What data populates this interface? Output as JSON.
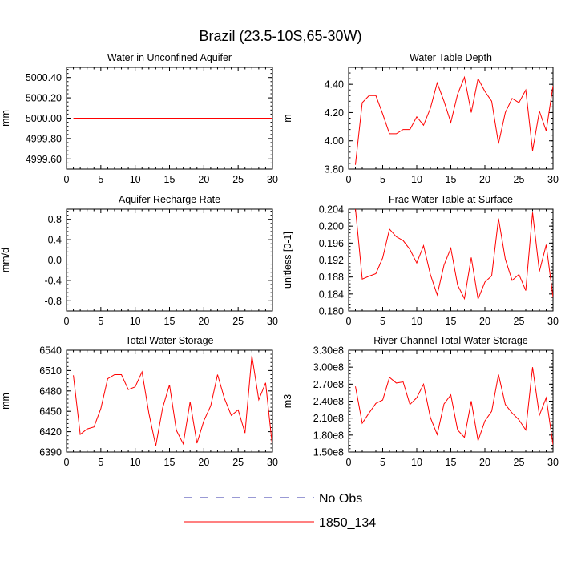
{
  "title": "Brazil (23.5-10S,65-30W)",
  "legend": {
    "position": "bottom-center",
    "entries": [
      {
        "label": "No Obs",
        "color": "#3333aa",
        "style": "dashed"
      },
      {
        "label": "1850_134",
        "color": "#ff0000",
        "style": "solid"
      }
    ]
  },
  "chart_data": [
    {
      "type": "line",
      "title": "Water in Unconfined Aquifer",
      "ylabel": "mm",
      "xlim": [
        0,
        30
      ],
      "ylim": [
        4999.5,
        5000.5
      ],
      "xticks": [
        0,
        5,
        10,
        15,
        20,
        25,
        30
      ],
      "yticks": [
        4999.6,
        4999.8,
        5000.0,
        5000.2,
        5000.4
      ],
      "ytick_labels": [
        "4999.60",
        "4999.80",
        "5000.00",
        "5000.20",
        "5000.40"
      ],
      "series": [
        {
          "name": "1850_134",
          "color": "#ff0000",
          "x": [
            1,
            2,
            3,
            4,
            5,
            6,
            7,
            8,
            9,
            10,
            11,
            12,
            13,
            14,
            15,
            16,
            17,
            18,
            19,
            20,
            21,
            22,
            23,
            24,
            25,
            26,
            27,
            28,
            29,
            30
          ],
          "y": [
            5000,
            5000,
            5000,
            5000,
            5000,
            5000,
            5000,
            5000,
            5000,
            5000,
            5000,
            5000,
            5000,
            5000,
            5000,
            5000,
            5000,
            5000,
            5000,
            5000,
            5000,
            5000,
            5000,
            5000,
            5000,
            5000,
            5000,
            5000,
            5000,
            5000
          ]
        }
      ]
    },
    {
      "type": "line",
      "title": "Water Table Depth",
      "ylabel": "m",
      "xlim": [
        0,
        30
      ],
      "ylim": [
        3.8,
        4.52
      ],
      "xticks": [
        0,
        5,
        10,
        15,
        20,
        25,
        30
      ],
      "yticks": [
        3.8,
        4.0,
        4.2,
        4.4
      ],
      "ytick_labels": [
        "3.80",
        "4.00",
        "4.20",
        "4.40"
      ],
      "series": [
        {
          "name": "1850_134",
          "color": "#ff0000",
          "x": [
            1,
            2,
            3,
            4,
            5,
            6,
            7,
            8,
            9,
            10,
            11,
            12,
            13,
            14,
            15,
            16,
            17,
            18,
            19,
            20,
            21,
            22,
            23,
            24,
            25,
            26,
            27,
            28,
            29,
            30
          ],
          "y": [
            3.83,
            4.27,
            4.32,
            4.32,
            4.19,
            4.05,
            4.05,
            4.08,
            4.08,
            4.17,
            4.11,
            4.23,
            4.41,
            4.28,
            4.13,
            4.33,
            4.45,
            4.2,
            4.44,
            4.35,
            4.28,
            3.98,
            4.2,
            4.3,
            4.27,
            4.36,
            3.93,
            4.21,
            4.07,
            4.39
          ]
        }
      ]
    },
    {
      "type": "line",
      "title": "Aquifer Recharge Rate",
      "ylabel": "mm/d",
      "xlim": [
        0,
        30
      ],
      "ylim": [
        -1.0,
        1.0
      ],
      "xticks": [
        0,
        5,
        10,
        15,
        20,
        25,
        30
      ],
      "yticks": [
        -0.8,
        -0.4,
        0.0,
        0.4,
        0.8
      ],
      "ytick_labels": [
        "-0.8",
        "-0.4",
        "0.0",
        "0.4",
        "0.8"
      ],
      "series": [
        {
          "name": "1850_134",
          "color": "#ff0000",
          "x": [
            1,
            2,
            3,
            4,
            5,
            6,
            7,
            8,
            9,
            10,
            11,
            12,
            13,
            14,
            15,
            16,
            17,
            18,
            19,
            20,
            21,
            22,
            23,
            24,
            25,
            26,
            27,
            28,
            29,
            30
          ],
          "y": [
            0,
            0,
            0,
            0,
            0,
            0,
            0,
            0,
            0,
            0,
            0,
            0,
            0,
            0,
            0,
            0,
            0,
            0,
            0,
            0,
            0,
            0,
            0,
            0,
            0,
            0,
            0,
            0,
            0,
            0
          ]
        }
      ]
    },
    {
      "type": "line",
      "title": "Frac Water Table at Surface",
      "ylabel": "unitless [0-1]",
      "xlim": [
        0,
        30
      ],
      "ylim": [
        0.18,
        0.204
      ],
      "xticks": [
        0,
        5,
        10,
        15,
        20,
        25,
        30
      ],
      "yticks": [
        0.18,
        0.184,
        0.188,
        0.192,
        0.196,
        0.2,
        0.204
      ],
      "ytick_labels": [
        "0.180",
        "0.184",
        "0.188",
        "0.192",
        "0.196",
        "0.200",
        "0.204"
      ],
      "series": [
        {
          "name": "1850_134",
          "color": "#ff0000",
          "x": [
            1,
            2,
            3,
            4,
            5,
            6,
            7,
            8,
            9,
            10,
            11,
            12,
            13,
            14,
            15,
            16,
            17,
            18,
            19,
            20,
            21,
            22,
            23,
            24,
            25,
            26,
            27,
            28,
            29,
            30
          ],
          "y": [
            0.2042,
            0.1875,
            0.1882,
            0.1888,
            0.1925,
            0.1993,
            0.1975,
            0.1966,
            0.1945,
            0.1913,
            0.1954,
            0.1886,
            0.1838,
            0.1908,
            0.1948,
            0.1861,
            0.1829,
            0.1926,
            0.1828,
            0.1868,
            0.1883,
            0.2018,
            0.1922,
            0.1872,
            0.1886,
            0.1848,
            0.2032,
            0.1893,
            0.1956,
            0.1832
          ]
        }
      ]
    },
    {
      "type": "line",
      "title": "Total Water Storage",
      "ylabel": "mm",
      "xlim": [
        0,
        30
      ],
      "ylim": [
        6390,
        6540
      ],
      "xticks": [
        0,
        5,
        10,
        15,
        20,
        25,
        30
      ],
      "yticks": [
        6390,
        6420,
        6450,
        6480,
        6510,
        6540
      ],
      "ytick_labels": [
        "6390",
        "6420",
        "6450",
        "6480",
        "6510",
        "6540"
      ],
      "series": [
        {
          "name": "1850_134",
          "color": "#ff0000",
          "x": [
            1,
            2,
            3,
            4,
            5,
            6,
            7,
            8,
            9,
            10,
            11,
            12,
            13,
            14,
            15,
            16,
            17,
            18,
            19,
            20,
            21,
            22,
            23,
            24,
            25,
            26,
            27,
            28,
            29,
            30
          ],
          "y": [
            6503,
            6416,
            6424,
            6427,
            6454,
            6498,
            6504,
            6504,
            6482,
            6486,
            6508,
            6447,
            6399,
            6455,
            6489,
            6422,
            6402,
            6464,
            6403,
            6436,
            6458,
            6504,
            6469,
            6444,
            6452,
            6418,
            6532,
            6467,
            6492,
            6397
          ]
        }
      ]
    },
    {
      "type": "line",
      "title": "River Channel Total Water Storage",
      "ylabel": "m3",
      "xlim": [
        0,
        30
      ],
      "ylim": [
        150000000,
        330000000
      ],
      "xticks": [
        0,
        5,
        10,
        15,
        20,
        25,
        30
      ],
      "yticks": [
        150000000,
        180000000,
        210000000,
        240000000,
        270000000,
        300000000,
        330000000
      ],
      "ytick_labels": [
        "1.50e8",
        "1.80e8",
        "2.10e8",
        "2.40e8",
        "2.70e8",
        "3.00e8",
        "3.30e8"
      ],
      "series": [
        {
          "name": "1850_134",
          "color": "#ff0000",
          "x": [
            1,
            2,
            3,
            4,
            5,
            6,
            7,
            8,
            9,
            10,
            11,
            12,
            13,
            14,
            15,
            16,
            17,
            18,
            19,
            20,
            21,
            22,
            23,
            24,
            25,
            26,
            27,
            28,
            29,
            30
          ],
          "y": [
            266000000,
            201000000,
            219000000,
            236000000,
            242000000,
            282000000,
            272000000,
            274000000,
            234000000,
            246000000,
            270000000,
            211000000,
            181000000,
            235000000,
            251000000,
            189000000,
            176000000,
            240000000,
            170000000,
            205000000,
            222000000,
            287000000,
            234000000,
            219000000,
            207000000,
            189000000,
            300000000,
            215000000,
            246000000,
            163000000
          ]
        }
      ]
    }
  ]
}
